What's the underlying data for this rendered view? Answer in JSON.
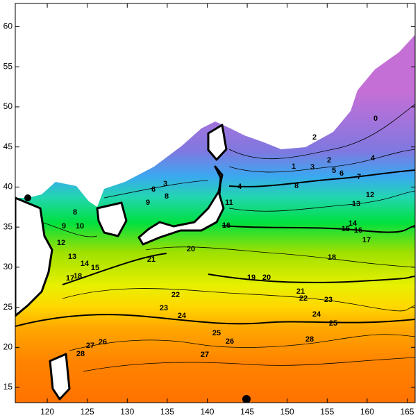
{
  "map": {
    "xlim": [
      116,
      166
    ],
    "ylim": [
      13.1,
      62.9
    ],
    "xticks": [
      120,
      125,
      130,
      135,
      140,
      145,
      150,
      155,
      160,
      165
    ],
    "yticks": [
      15,
      20,
      25,
      30,
      35,
      40,
      45,
      50,
      55,
      60
    ],
    "contour_labels": [
      0,
      2,
      1,
      3,
      2,
      4,
      5,
      6,
      7,
      3,
      6,
      8,
      9,
      8,
      4,
      12,
      13,
      8,
      9,
      10,
      14,
      15,
      16,
      17,
      12,
      13,
      14,
      15,
      20,
      21,
      18,
      19,
      20,
      21,
      22,
      23,
      22,
      23,
      24,
      24,
      25,
      25,
      26,
      26,
      27,
      28,
      28,
      27,
      16,
      17,
      18,
      11
    ]
  }
}
